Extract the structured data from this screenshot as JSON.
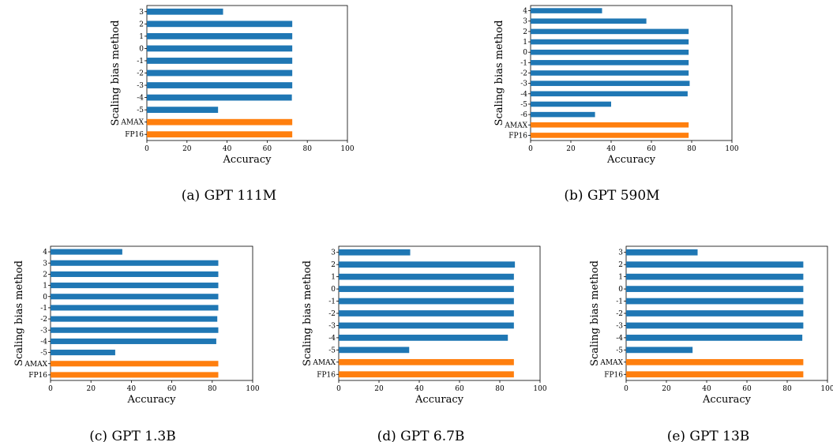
{
  "colors": {
    "standard": "#1f77b4",
    "baseline": "#ff7f0e",
    "axis": "#000000"
  },
  "chart_data": [
    {
      "type": "bar",
      "orientation": "horizontal",
      "caption": "(a) GPT 111M",
      "xlabel": "Accuracy",
      "ylabel": "Scaling bias method",
      "xlim": [
        0,
        100
      ],
      "xticks": [
        0,
        20,
        40,
        60,
        80,
        100
      ],
      "categories": [
        "3",
        "2",
        "1",
        "0",
        "-1",
        "-2",
        "-3",
        "-4",
        "-5",
        "AMAX",
        "FP16"
      ],
      "values": [
        38,
        72.5,
        72.5,
        72.5,
        72.5,
        72.5,
        72.5,
        72.3,
        35.5,
        72.5,
        72.5
      ],
      "bar_colors": [
        "standard",
        "standard",
        "standard",
        "standard",
        "standard",
        "standard",
        "standard",
        "standard",
        "standard",
        "baseline",
        "baseline"
      ]
    },
    {
      "type": "bar",
      "orientation": "horizontal",
      "caption": "(b) GPT 590M",
      "xlabel": "Accuracy",
      "ylabel": "Scaling bias method",
      "xlim": [
        0,
        100
      ],
      "xticks": [
        0,
        20,
        40,
        60,
        80,
        100
      ],
      "categories": [
        "4",
        "3",
        "2",
        "1",
        "0",
        "-1",
        "-2",
        "-3",
        "-4",
        "-5",
        "-6",
        "AMAX",
        "FP16"
      ],
      "values": [
        35.5,
        57.5,
        78.5,
        78.5,
        78.5,
        78.5,
        78.5,
        79,
        78,
        40,
        32,
        78.5,
        78.5
      ],
      "bar_colors": [
        "standard",
        "standard",
        "standard",
        "standard",
        "standard",
        "standard",
        "standard",
        "standard",
        "standard",
        "standard",
        "standard",
        "baseline",
        "baseline"
      ]
    },
    {
      "type": "bar",
      "orientation": "horizontal",
      "caption": "(c) GPT 1.3B",
      "xlabel": "Accuracy",
      "ylabel": "Scaling bias method",
      "xlim": [
        0,
        100
      ],
      "xticks": [
        0,
        20,
        40,
        60,
        80,
        100
      ],
      "categories": [
        "4",
        "3",
        "2",
        "1",
        "0",
        "-1",
        "-2",
        "-3",
        "-4",
        "-5",
        "AMAX",
        "FP16"
      ],
      "values": [
        35.5,
        83,
        83,
        83,
        83,
        83,
        82.5,
        83,
        82,
        32,
        83,
        83
      ],
      "bar_colors": [
        "standard",
        "standard",
        "standard",
        "standard",
        "standard",
        "standard",
        "standard",
        "standard",
        "standard",
        "standard",
        "baseline",
        "baseline"
      ]
    },
    {
      "type": "bar",
      "orientation": "horizontal",
      "caption": "(d) GPT 6.7B",
      "xlabel": "Accuracy",
      "ylabel": "Scaling bias method",
      "xlim": [
        0,
        100
      ],
      "xticks": [
        0,
        20,
        40,
        60,
        80,
        100
      ],
      "categories": [
        "3",
        "2",
        "1",
        "0",
        "-1",
        "-2",
        "-3",
        "-4",
        "-5",
        "AMAX",
        "FP16"
      ],
      "values": [
        35.5,
        87.5,
        87,
        87,
        87,
        87,
        87,
        84,
        35,
        87,
        87
      ],
      "bar_colors": [
        "standard",
        "standard",
        "standard",
        "standard",
        "standard",
        "standard",
        "standard",
        "standard",
        "standard",
        "baseline",
        "baseline"
      ]
    },
    {
      "type": "bar",
      "orientation": "horizontal",
      "caption": "(e) GPT 13B",
      "xlabel": "Accuracy",
      "ylabel": "Scaling bias method",
      "xlim": [
        0,
        100
      ],
      "xticks": [
        0,
        20,
        40,
        60,
        80,
        100
      ],
      "categories": [
        "3",
        "2",
        "1",
        "0",
        "-1",
        "-2",
        "-3",
        "-4",
        "-5",
        "AMAX",
        "FP16"
      ],
      "values": [
        35.5,
        88,
        88,
        88,
        88,
        88,
        88,
        87.5,
        33,
        88,
        88
      ],
      "bar_colors": [
        "standard",
        "standard",
        "standard",
        "standard",
        "standard",
        "standard",
        "standard",
        "standard",
        "standard",
        "baseline",
        "baseline"
      ]
    }
  ]
}
